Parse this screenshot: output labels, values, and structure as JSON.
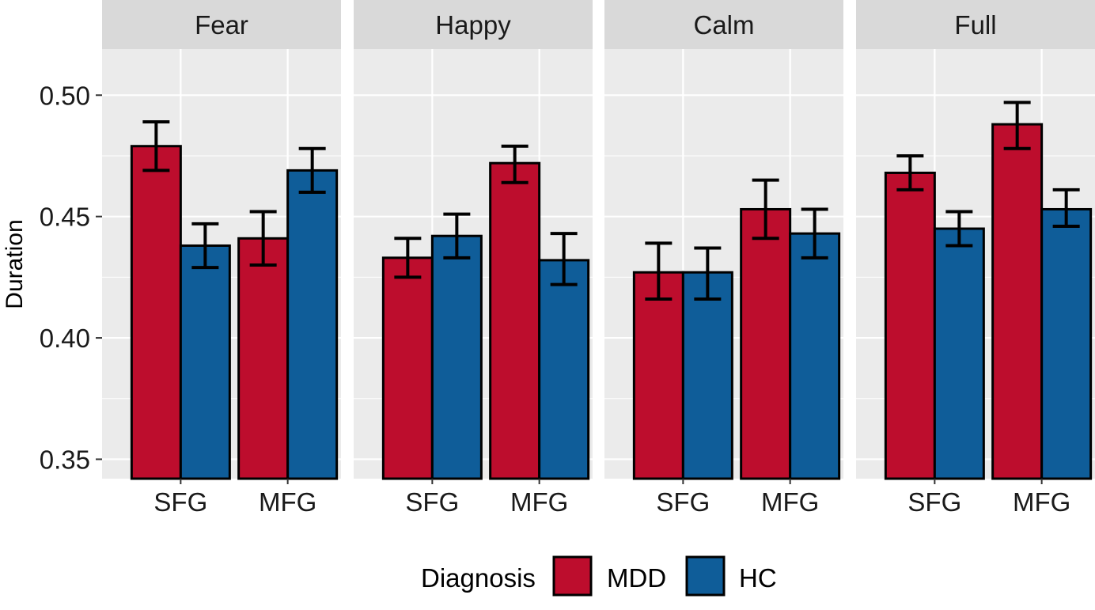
{
  "chart_data": {
    "type": "bar",
    "ylabel": "Duration",
    "xlabel": "",
    "ylim": [
      0.342,
      0.519
    ],
    "yticks": [
      0.35,
      0.4,
      0.45,
      0.5
    ],
    "ytick_labels": [
      "0.35",
      "0.40",
      "0.45",
      "0.50"
    ],
    "grid": true,
    "error_bars": true,
    "legend": {
      "title": "Diagnosis",
      "placement": "bottom",
      "entries": [
        {
          "name": "MDD",
          "color": "#bd0d2d"
        },
        {
          "name": "HC",
          "color": "#0f5d99"
        }
      ]
    },
    "categories": [
      "SFG",
      "MFG"
    ],
    "panels": [
      {
        "facet": "Fear",
        "series": [
          {
            "name": "MDD",
            "values": [
              0.479,
              0.441
            ],
            "err_low": [
              0.469,
              0.43
            ],
            "err_high": [
              0.489,
              0.452
            ]
          },
          {
            "name": "HC",
            "values": [
              0.438,
              0.469
            ],
            "err_low": [
              0.429,
              0.46
            ],
            "err_high": [
              0.447,
              0.478
            ]
          }
        ]
      },
      {
        "facet": "Happy",
        "series": [
          {
            "name": "MDD",
            "values": [
              0.433,
              0.472
            ],
            "err_low": [
              0.425,
              0.464
            ],
            "err_high": [
              0.441,
              0.479
            ]
          },
          {
            "name": "HC",
            "values": [
              0.442,
              0.432
            ],
            "err_low": [
              0.433,
              0.422
            ],
            "err_high": [
              0.451,
              0.443
            ]
          }
        ]
      },
      {
        "facet": "Calm",
        "series": [
          {
            "name": "MDD",
            "values": [
              0.427,
              0.453
            ],
            "err_low": [
              0.416,
              0.441
            ],
            "err_high": [
              0.439,
              0.465
            ]
          },
          {
            "name": "HC",
            "values": [
              0.427,
              0.443
            ],
            "err_low": [
              0.416,
              0.433
            ],
            "err_high": [
              0.437,
              0.453
            ]
          }
        ]
      },
      {
        "facet": "Full",
        "series": [
          {
            "name": "MDD",
            "values": [
              0.468,
              0.488
            ],
            "err_low": [
              0.461,
              0.478
            ],
            "err_high": [
              0.475,
              0.497
            ]
          },
          {
            "name": "HC",
            "values": [
              0.445,
              0.453
            ],
            "err_low": [
              0.438,
              0.446
            ],
            "err_high": [
              0.452,
              0.461
            ]
          }
        ]
      }
    ]
  }
}
